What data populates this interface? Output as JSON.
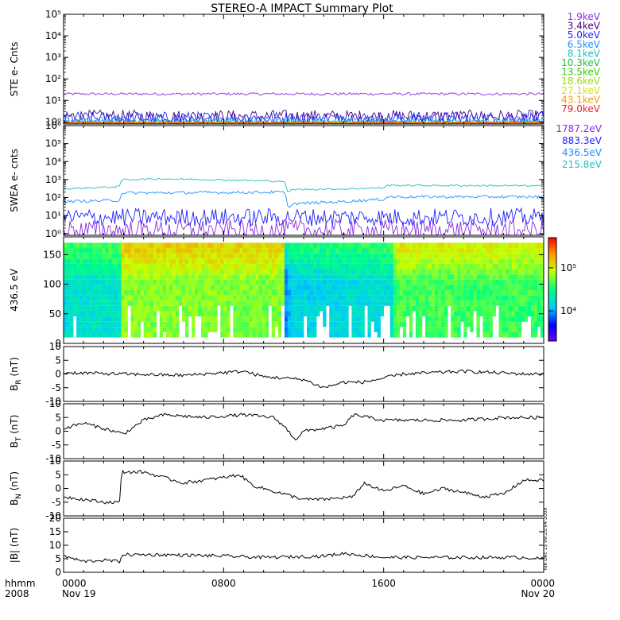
{
  "title": "STEREO-A IMPACT Summary Plot",
  "side_note": "Tue Dec 15 09:25:04 2009",
  "colors": {
    "axis": "#000000",
    "trace": "#000000"
  },
  "x_axis": {
    "corner_labels": [
      "hhmm",
      "2008"
    ],
    "ticks": [
      {
        "t": 0,
        "time": "0000",
        "date": "Nov 19"
      },
      {
        "t": 8,
        "time": "0800",
        "date": ""
      },
      {
        "t": 16,
        "time": "1600",
        "date": ""
      },
      {
        "t": 24,
        "time": "0000",
        "date": "Nov 20"
      }
    ],
    "range_hours": [
      0,
      24
    ]
  },
  "chart_data": [
    {
      "type": "line",
      "panel": "ste",
      "ylabel": "STE e- Cnts",
      "yscale": "log",
      "ylim": [
        0.8,
        100000
      ],
      "yticks": [
        {
          "v": 1,
          "label": "10⁰"
        },
        {
          "v": 10,
          "label": "10¹"
        },
        {
          "v": 100,
          "label": "10²"
        },
        {
          "v": 1000,
          "label": "10³"
        },
        {
          "v": 10000,
          "label": "10⁴"
        },
        {
          "v": 100000,
          "label": "10⁵"
        }
      ],
      "series": [
        {
          "name": "1.9keV",
          "color": "#8a2be2",
          "level": 20,
          "noise": 0.06
        },
        {
          "name": "3.4keV",
          "color": "#4b0082",
          "level": 1.8,
          "noise": 0.3
        },
        {
          "name": "5.0keV",
          "color": "#1f1fff",
          "level": 1.5,
          "noise": 0.3
        },
        {
          "name": "6.5keV",
          "color": "#1e90ff",
          "level": 1.2,
          "noise": 0.2
        },
        {
          "name": "8.1keV",
          "color": "#20c0c0",
          "level": 1.0,
          "noise": 0.1
        },
        {
          "name": "10.3keV",
          "color": "#20c040",
          "level": 0.9,
          "noise": 0.05
        },
        {
          "name": "13.5keV",
          "color": "#33cc00",
          "level": 0.9,
          "noise": 0.05
        },
        {
          "name": "18.6keV",
          "color": "#99dd00",
          "level": 0.9,
          "noise": 0.05
        },
        {
          "name": "27.1keV",
          "color": "#dddd00",
          "level": 0.9,
          "noise": 0.05
        },
        {
          "name": "43.1keV",
          "color": "#ff9900",
          "level": 0.9,
          "noise": 0.05
        },
        {
          "name": "79.0keV",
          "color": "#ee2222",
          "level": 0.9,
          "noise": 0.05
        }
      ]
    },
    {
      "type": "line",
      "panel": "swea",
      "ylabel": "SWEA e- cnts",
      "yscale": "log",
      "ylim": [
        0.8,
        1000000
      ],
      "yticks": [
        {
          "v": 1,
          "label": "10⁰"
        },
        {
          "v": 10,
          "label": "10¹"
        },
        {
          "v": 100,
          "label": "10²"
        },
        {
          "v": 1000,
          "label": "10³"
        },
        {
          "v": 10000,
          "label": "10⁴"
        },
        {
          "v": 100000,
          "label": "10⁵"
        },
        {
          "v": 1000000,
          "label": "10⁶"
        }
      ],
      "series": [
        {
          "name": "1787.2eV",
          "color": "#8a2be2",
          "points": [
            [
              0,
              1.5
            ],
            [
              24,
              1.5
            ]
          ],
          "noise": 0.6
        },
        {
          "name": "883.3eV",
          "color": "#1f1fff",
          "points": [
            [
              0,
              8
            ],
            [
              24,
              8
            ]
          ],
          "noise": 0.5
        },
        {
          "name": "436.5eV",
          "color": "#1e90ff",
          "points": [
            [
              0,
              60
            ],
            [
              2.8,
              70
            ],
            [
              2.9,
              180
            ],
            [
              11,
              200
            ],
            [
              11.2,
              30
            ],
            [
              11.5,
              45
            ],
            [
              14,
              60
            ],
            [
              16,
              80
            ],
            [
              16.2,
              110
            ],
            [
              24,
              110
            ]
          ],
          "noise": 0.08
        },
        {
          "name": "215.8eV",
          "color": "#20c0c0",
          "points": [
            [
              0,
              300
            ],
            [
              2.8,
              400
            ],
            [
              2.9,
              1000
            ],
            [
              5,
              1100
            ],
            [
              11,
              800
            ],
            [
              11.2,
              200
            ],
            [
              11.5,
              280
            ],
            [
              14,
              300
            ],
            [
              16,
              350
            ],
            [
              16.2,
              480
            ],
            [
              24,
              450
            ]
          ],
          "noise": 0.05
        }
      ]
    },
    {
      "type": "heatmap",
      "panel": "spectrogram",
      "ylabel": "436.5 eV",
      "ylim": [
        0,
        180
      ],
      "yticks": [
        0,
        50,
        100,
        150
      ],
      "colorbar": {
        "scale": "log",
        "range": [
          2000,
          500000
        ],
        "ticks": [
          {
            "v": 10000,
            "label": "10⁴"
          },
          {
            "v": 100000,
            "label": "10⁵"
          }
        ]
      },
      "intensity_profile": [
        [
          0,
          18000
        ],
        [
          2.8,
          20000
        ],
        [
          2.9,
          60000
        ],
        [
          11,
          55000
        ],
        [
          11.1,
          9000
        ],
        [
          11.5,
          15000
        ],
        [
          16.5,
          18000
        ],
        [
          16.6,
          45000
        ],
        [
          24,
          40000
        ]
      ]
    },
    {
      "type": "line",
      "panel": "br",
      "ylabel": "B_R (nT)",
      "ylim": [
        -10,
        10
      ],
      "yticks": [
        -10,
        -5,
        0,
        5,
        10
      ],
      "series": [
        {
          "name": "B_R",
          "color": "#000000",
          "points": [
            [
              0,
              0.5
            ],
            [
              3,
              0
            ],
            [
              6,
              -0.5
            ],
            [
              9,
              1
            ],
            [
              10,
              -1
            ],
            [
              12,
              -2
            ],
            [
              13,
              -5
            ],
            [
              14,
              -3
            ],
            [
              15,
              -3
            ],
            [
              17,
              0
            ],
            [
              20,
              1
            ],
            [
              23,
              0
            ],
            [
              24,
              0
            ]
          ]
        }
      ]
    },
    {
      "type": "line",
      "panel": "bt",
      "ylabel": "B_T (nT)",
      "ylim": [
        -10,
        10
      ],
      "yticks": [
        -10,
        -5,
        0,
        5,
        10
      ],
      "series": [
        {
          "name": "B_T",
          "color": "#000000",
          "points": [
            [
              0,
              1
            ],
            [
              1,
              3
            ],
            [
              2,
              1
            ],
            [
              3,
              -1
            ],
            [
              4,
              4
            ],
            [
              5,
              6
            ],
            [
              7,
              5
            ],
            [
              9,
              6
            ],
            [
              10.5,
              5
            ],
            [
              11,
              2
            ],
            [
              11.6,
              -3
            ],
            [
              12,
              0
            ],
            [
              13,
              1
            ],
            [
              14,
              2
            ],
            [
              14.5,
              6
            ],
            [
              16,
              4
            ],
            [
              18,
              4
            ],
            [
              20,
              4
            ],
            [
              22,
              5
            ],
            [
              23,
              5
            ],
            [
              24,
              5
            ]
          ]
        }
      ]
    },
    {
      "type": "line",
      "panel": "bn",
      "ylabel": "B_N (nT)",
      "ylim": [
        -10,
        10
      ],
      "yticks": [
        -10,
        -5,
        0,
        5,
        10
      ],
      "series": [
        {
          "name": "B_N",
          "color": "#000000",
          "points": [
            [
              0,
              -3
            ],
            [
              1,
              -4
            ],
            [
              2,
              -5
            ],
            [
              2.8,
              -5
            ],
            [
              2.9,
              6
            ],
            [
              4,
              6
            ],
            [
              6,
              2
            ],
            [
              8,
              4
            ],
            [
              8.8,
              5
            ],
            [
              9.5,
              1
            ],
            [
              11,
              -2
            ],
            [
              12,
              -4
            ],
            [
              13,
              -4
            ],
            [
              14.5,
              -3
            ],
            [
              15,
              2
            ],
            [
              16,
              -1
            ],
            [
              17,
              1
            ],
            [
              18,
              -2
            ],
            [
              19,
              0
            ],
            [
              21,
              -3
            ],
            [
              22,
              -2
            ],
            [
              23,
              3
            ],
            [
              24,
              3
            ]
          ]
        }
      ]
    },
    {
      "type": "line",
      "panel": "bmag",
      "ylabel": "|B| (nT)",
      "ylim": [
        0,
        20
      ],
      "yticks": [
        0,
        5,
        10,
        15,
        20
      ],
      "series": [
        {
          "name": "|B|",
          "color": "#000000",
          "points": [
            [
              0,
              6
            ],
            [
              1,
              4
            ],
            [
              2,
              4.5
            ],
            [
              2.8,
              4
            ],
            [
              2.9,
              6.5
            ],
            [
              5,
              6.5
            ],
            [
              8,
              6
            ],
            [
              10,
              5.5
            ],
            [
              13,
              6
            ],
            [
              14,
              7
            ],
            [
              16,
              5.5
            ],
            [
              20,
              5.5
            ],
            [
              23,
              5.5
            ],
            [
              24,
              5
            ]
          ]
        }
      ]
    }
  ]
}
